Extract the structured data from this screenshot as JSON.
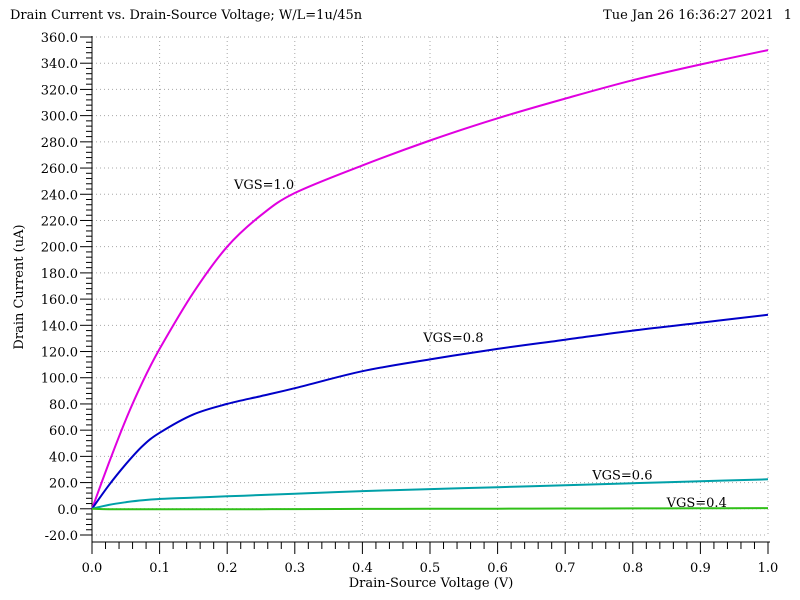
{
  "header": {
    "title": "Drain Current vs. Drain-Source Voltage; W/L=1u/45n",
    "timestamp": "Tue Jan 26 16:36:27 2021",
    "page": "1"
  },
  "chart_data": {
    "type": "line",
    "title": "Drain Current vs. Drain-Source Voltage; W/L=1u/45n",
    "xlabel": "Drain-Source Voltage (V)",
    "ylabel": "Drain Current (uA)",
    "xlim": [
      0,
      1.0
    ],
    "ylim": [
      -20,
      360
    ],
    "x_ticks": [
      "0.0",
      "0.1",
      "0.2",
      "0.3",
      "0.4",
      "0.5",
      "0.6",
      "0.7",
      "0.8",
      "0.9",
      "1.0"
    ],
    "y_ticks": [
      "-20.0",
      "0.0",
      "20.0",
      "40.0",
      "60.0",
      "80.0",
      "100.0",
      "120.0",
      "140.0",
      "160.0",
      "180.0",
      "200.0",
      "220.0",
      "240.0",
      "260.0",
      "280.0",
      "300.0",
      "320.0",
      "340.0",
      "360.0"
    ],
    "grid": true,
    "x": [
      0,
      0.025,
      0.05,
      0.075,
      0.1,
      0.15,
      0.2,
      0.25,
      0.3,
      0.4,
      0.5,
      0.6,
      0.7,
      0.8,
      0.9,
      1.0
    ],
    "series": [
      {
        "name": "VGS=1.0",
        "color": "#e000e0",
        "values": [
          0,
          35,
          68,
          97,
          122,
          165,
          200,
          224,
          241,
          262,
          281,
          298,
          313,
          327,
          339,
          350
        ],
        "label_at": [
          0.21,
          248
        ]
      },
      {
        "name": "VGS=0.8",
        "color": "#0000c8",
        "values": [
          0,
          18,
          34,
          48,
          58,
          72,
          80,
          86,
          92,
          105,
          114,
          122,
          129,
          136,
          142,
          148
        ],
        "label_at": [
          0.49,
          131
        ]
      },
      {
        "name": "VGS=0.6",
        "color": "#00a0a8",
        "values": [
          0,
          3,
          5,
          6.5,
          7.5,
          8.5,
          9.5,
          10.5,
          11.5,
          13.5,
          15,
          16.5,
          18,
          19.5,
          21,
          22.5
        ],
        "label_at": [
          0.74,
          26
        ]
      },
      {
        "name": "VGS=0.4",
        "color": "#30c018",
        "values": [
          0,
          -0.3,
          -0.4,
          -0.4,
          -0.4,
          -0.4,
          -0.3,
          -0.3,
          -0.2,
          -0.1,
          0,
          0.1,
          0.2,
          0.3,
          0.4,
          0.5
        ],
        "label_at": [
          0.85,
          5
        ]
      }
    ]
  }
}
